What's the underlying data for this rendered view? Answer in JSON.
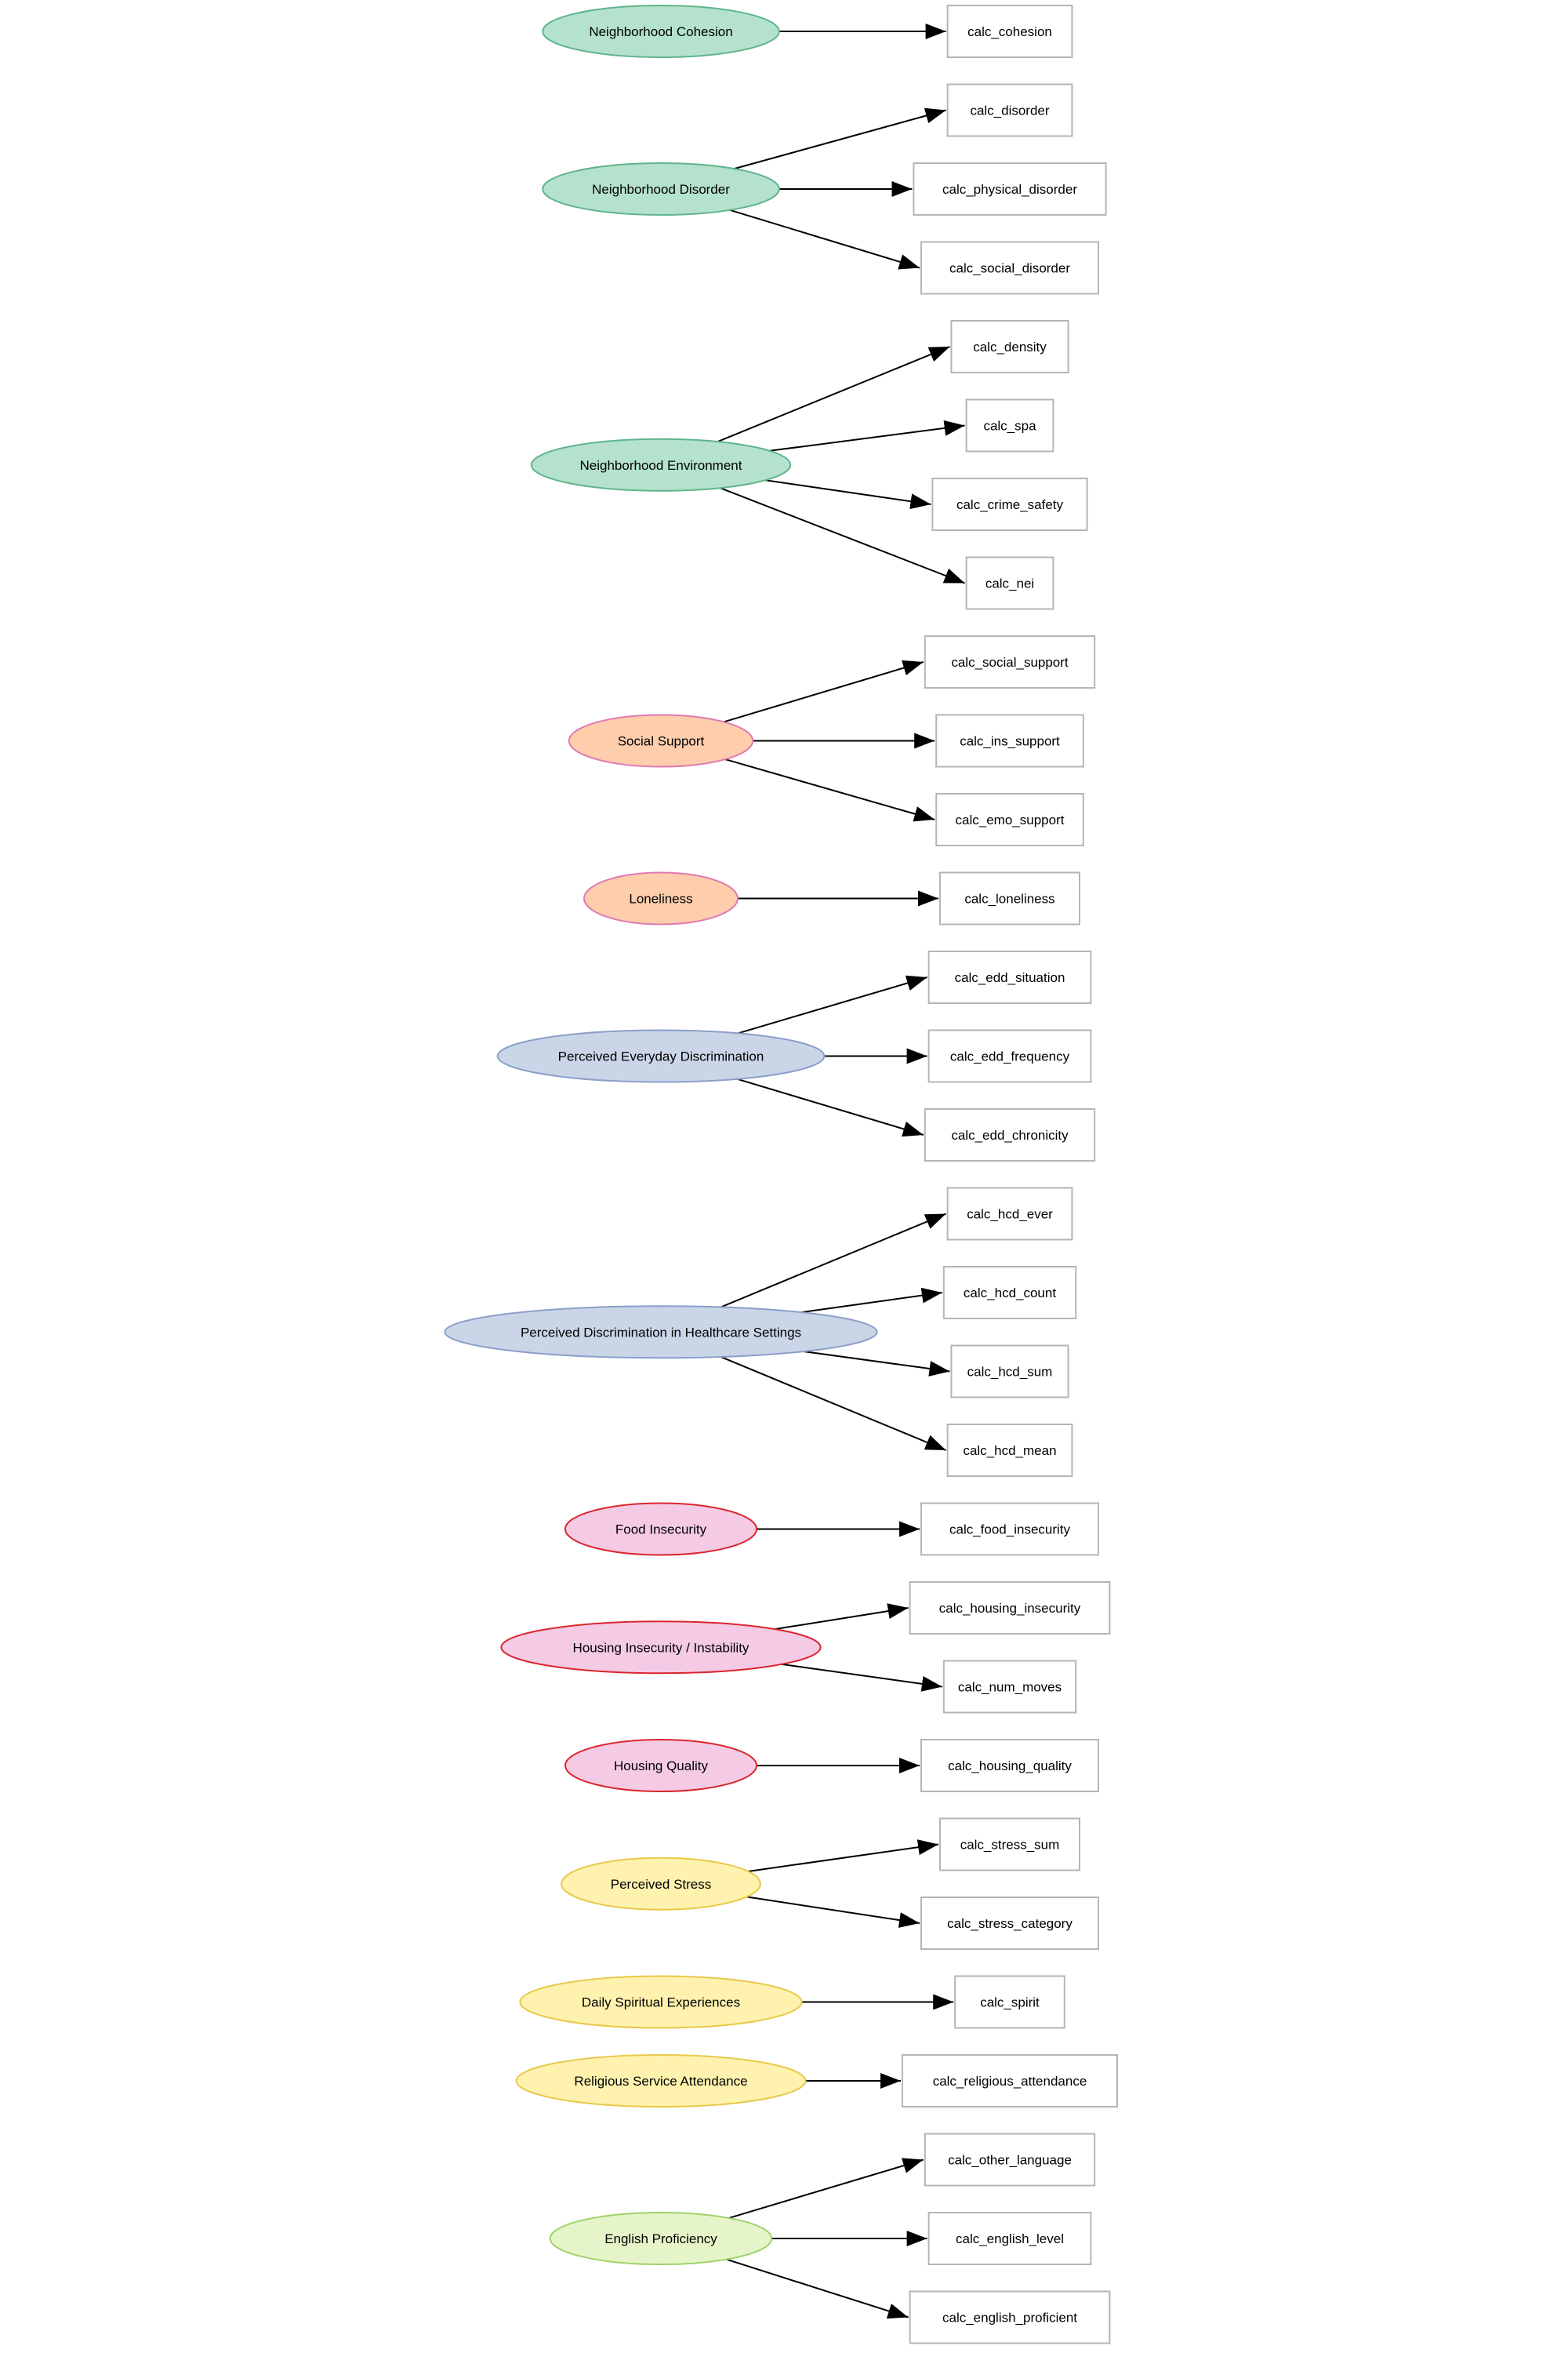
{
  "groups": [
    {
      "construct": "Neighborhood Cohesion",
      "color": "neighborhood",
      "variables": [
        "calc_cohesion"
      ]
    },
    {
      "construct": "Neighborhood Disorder",
      "color": "neighborhood",
      "variables": [
        "calc_disorder",
        "calc_physical_disorder",
        "calc_social_disorder"
      ]
    },
    {
      "construct": "Neighborhood Environment",
      "color": "neighborhood",
      "variables": [
        "calc_density",
        "calc_spa",
        "calc_crime_safety",
        "calc_nei"
      ]
    },
    {
      "construct": "Social Support",
      "color": "social",
      "variables": [
        "calc_social_support",
        "calc_ins_support",
        "calc_emo_support"
      ]
    },
    {
      "construct": "Loneliness",
      "color": "social",
      "variables": [
        "calc_loneliness"
      ]
    },
    {
      "construct": "Perceived Everyday Discrimination",
      "color": "discrimination",
      "variables": [
        "calc_edd_situation",
        "calc_edd_frequency",
        "calc_edd_chronicity"
      ]
    },
    {
      "construct": "Perceived Discrimination in Healthcare Settings",
      "color": "discrimination",
      "variables": [
        "calc_hcd_ever",
        "calc_hcd_count",
        "calc_hcd_sum",
        "calc_hcd_mean"
      ]
    },
    {
      "construct": "Food Insecurity",
      "color": "housing",
      "variables": [
        "calc_food_insecurity"
      ]
    },
    {
      "construct": "Housing Insecurity / Instability",
      "color": "housing",
      "variables": [
        "calc_housing_insecurity",
        "calc_num_moves"
      ]
    },
    {
      "construct": "Housing Quality",
      "color": "housing",
      "variables": [
        "calc_housing_quality"
      ]
    },
    {
      "construct": "Perceived Stress",
      "color": "stress",
      "variables": [
        "calc_stress_sum",
        "calc_stress_category"
      ]
    },
    {
      "construct": "Daily Spiritual Experiences",
      "color": "stress",
      "variables": [
        "calc_spirit"
      ]
    },
    {
      "construct": "Religious Service Attendance",
      "color": "stress",
      "variables": [
        "calc_religious_attendance"
      ]
    },
    {
      "construct": "English Proficiency",
      "color": "language",
      "variables": [
        "calc_other_language",
        "calc_english_level",
        "calc_english_proficient"
      ]
    }
  ],
  "palette": {
    "neighborhood": {
      "fill": "#b4e2ce",
      "stroke": "#5fb48c"
    },
    "social": {
      "fill": "#fdcdac",
      "stroke": "#e07ab0"
    },
    "discrimination": {
      "fill": "#cbd5e8",
      "stroke": "#8a9fc9"
    },
    "housing": {
      "fill": "#f4cae4",
      "stroke": "#d9262e"
    },
    "stress": {
      "fill": "#fff2ae",
      "stroke": "#e8c84a"
    },
    "language": {
      "fill": "#e6f5c9",
      "stroke": "#9fd26a"
    }
  },
  "node_stroke": "#b5b5b5",
  "edge_color": "#000000"
}
